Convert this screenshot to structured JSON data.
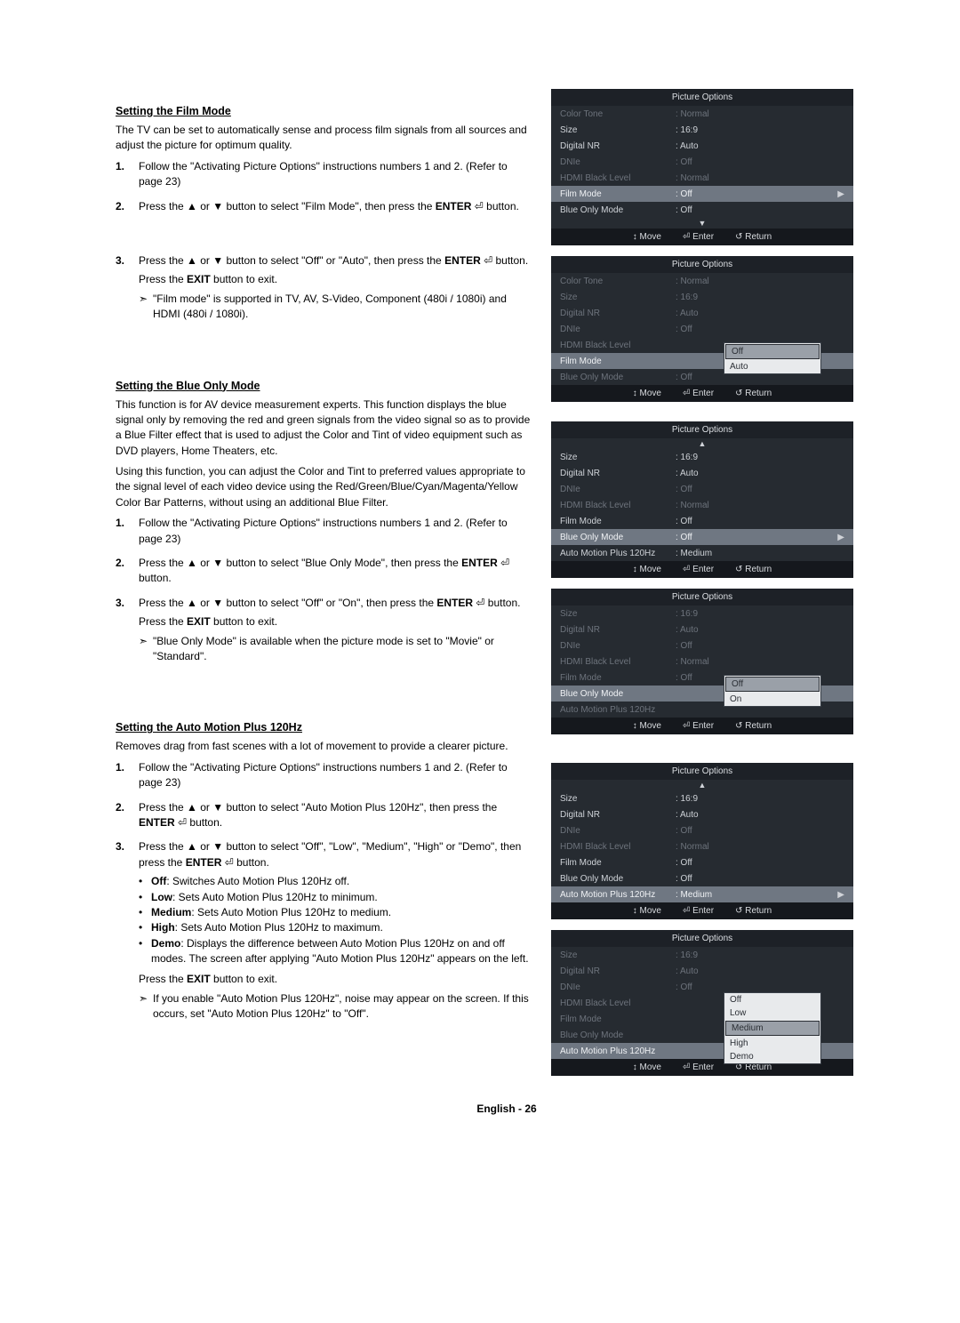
{
  "footer": "English - 26",
  "icons": {
    "enter": "⏎",
    "up": "▲",
    "down": "▼",
    "tri": "▶",
    "note": "➣",
    "move": "↕",
    "return": "↺"
  },
  "bar": {
    "move": "Move",
    "enter": "Enter",
    "return": "Return"
  },
  "menu_header": "Picture Options",
  "sectionA": {
    "title": "Setting the Film Mode",
    "intro": "The TV can be set to automatically sense and process film signals from all sources and adjust the picture for optimum quality.",
    "steps": [
      {
        "n": "1.",
        "text": "Follow the \"Activating Picture Options\" instructions numbers 1 and 2. (Refer to page 23)"
      },
      {
        "n": "2.",
        "text_parts": [
          "Press the ▲ or ▼ button to select \"Film Mode\", then press the ",
          "ENTER",
          " ⏎ button."
        ]
      },
      {
        "n": "3.",
        "text_parts": [
          "Press the ▲ or ▼ button to select \"Off\" or \"Auto\", then press the ",
          "ENTER",
          " ⏎ button."
        ],
        "exit_parts": [
          "Press the ",
          "EXIT",
          " button to exit."
        ],
        "note": "\"Film mode\" is supported in TV, AV, S-Video, Component (480i / 1080i) and HDMI (480i / 1080i)."
      }
    ]
  },
  "sectionB": {
    "title": "Setting the Blue Only Mode",
    "intro1": "This function is for AV device measurement experts. This function displays the blue signal only by removing the red and green signals from the video signal so as to provide a Blue Filter effect that is used to adjust the Color and Tint of video equipment such as DVD players, Home Theaters, etc.",
    "intro2": "Using this function, you can adjust the Color and Tint to preferred values appropriate to the signal level of each video device using the Red/Green/Blue/Cyan/Magenta/Yellow Color Bar Patterns, without using an additional Blue Filter.",
    "steps": [
      {
        "n": "1.",
        "text": "Follow the \"Activating Picture Options\" instructions numbers 1 and 2. (Refer to page 23)"
      },
      {
        "n": "2.",
        "text_parts": [
          "Press the ▲ or ▼ button to select \"Blue Only Mode\", then press the ",
          "ENTER",
          " ⏎ button."
        ]
      },
      {
        "n": "3.",
        "text_parts": [
          "Press the ▲ or ▼ button to select \"Off\" or \"On\", then press the ",
          "ENTER",
          " ⏎ button."
        ],
        "exit_parts": [
          "Press the ",
          "EXIT",
          " button to exit."
        ],
        "note": "\"Blue Only Mode\" is available when the picture mode is set to \"Movie\" or \"Standard\"."
      }
    ]
  },
  "sectionC": {
    "title": "Setting the Auto Motion Plus 120Hz",
    "intro": "Removes drag from fast scenes with a lot of movement to provide a clearer picture.",
    "steps": [
      {
        "n": "1.",
        "text": "Follow the \"Activating Picture Options\" instructions numbers 1 and 2. (Refer to page 23)"
      },
      {
        "n": "2.",
        "text_parts": [
          "Press the ▲ or ▼ button to select \"Auto Motion Plus 120Hz\", then press the ",
          "ENTER",
          " ⏎ button."
        ]
      },
      {
        "n": "3.",
        "text_parts": [
          "Press the ▲ or ▼ button to select \"Off\", \"Low\", \"Medium\", \"High\" or \"Demo\", then press the ",
          "ENTER",
          " ⏎ button."
        ]
      }
    ],
    "bullets": [
      {
        "b": "Off",
        "rest": ": Switches Auto Motion Plus 120Hz off."
      },
      {
        "b": "Low",
        "rest": ": Sets Auto Motion Plus 120Hz to minimum."
      },
      {
        "b": "Medium",
        "rest": ": Sets Auto Motion Plus 120Hz to medium."
      },
      {
        "b": "High",
        "rest": ": Sets Auto Motion Plus 120Hz to maximum."
      },
      {
        "b": "Demo",
        "rest": ": Displays the difference between Auto Motion Plus 120Hz on and off modes. The screen after applying \"Auto Motion Plus 120Hz\" appears on the left."
      }
    ],
    "exit_parts": [
      "Press the ",
      "EXIT",
      " button to exit."
    ],
    "note": "If you enable \"Auto Motion Plus 120Hz\", noise may appear on the screen. If this occurs, set \"Auto Motion Plus 120Hz\" to \"Off\"."
  },
  "menus": {
    "m1": {
      "rows": [
        {
          "label": "Color Tone",
          "val": ": Normal",
          "dim": true
        },
        {
          "label": "Size",
          "val": ": 16:9"
        },
        {
          "label": "Digital NR",
          "val": ": Auto"
        },
        {
          "label": "DNIe",
          "val": ": Off",
          "dim": true
        },
        {
          "label": "HDMI Black Level",
          "val": ": Normal",
          "dim": true
        },
        {
          "label": "Film Mode",
          "val": ": Off",
          "sel": true,
          "tri": true
        },
        {
          "label": "Blue Only Mode",
          "val": ": Off"
        }
      ],
      "scroll_down": true
    },
    "m2": {
      "rows": [
        {
          "label": "Color Tone",
          "val": ": Normal",
          "dim": true
        },
        {
          "label": "Size",
          "val": ": 16:9",
          "dim": true
        },
        {
          "label": "Digital NR",
          "val": ": Auto",
          "dim": true
        },
        {
          "label": "DNIe",
          "val": ": Off",
          "dim": true
        },
        {
          "label": "HDMI Black Level",
          "val": "",
          "dim": true
        },
        {
          "label": "Film Mode",
          "val": "",
          "sel": true,
          "popup": [
            "Off",
            "Auto"
          ],
          "popup_hl": 0
        },
        {
          "label": "Blue Only Mode",
          "val": ": Off",
          "dim": true
        }
      ]
    },
    "m3": {
      "scroll_up": true,
      "rows": [
        {
          "label": "Size",
          "val": ": 16:9"
        },
        {
          "label": "Digital NR",
          "val": ": Auto"
        },
        {
          "label": "DNIe",
          "val": ": Off",
          "dim": true
        },
        {
          "label": "HDMI Black Level",
          "val": ": Normal",
          "dim": true
        },
        {
          "label": "Film Mode",
          "val": ": Off"
        },
        {
          "label": "Blue Only Mode",
          "val": ": Off",
          "sel": true,
          "tri": true
        },
        {
          "label": "Auto Motion Plus 120Hz",
          "val": ": Medium"
        }
      ]
    },
    "m4": {
      "rows": [
        {
          "label": "Size",
          "val": ": 16:9",
          "dim": true
        },
        {
          "label": "Digital NR",
          "val": ": Auto",
          "dim": true
        },
        {
          "label": "DNIe",
          "val": ": Off",
          "dim": true
        },
        {
          "label": "HDMI Black Level",
          "val": ": Normal",
          "dim": true
        },
        {
          "label": "Film Mode",
          "val": ": Off",
          "dim": true
        },
        {
          "label": "Blue Only Mode",
          "val": "",
          "sel": true,
          "popup": [
            "Off",
            "On"
          ],
          "popup_hl": 0
        },
        {
          "label": "Auto Motion Plus 120Hz",
          "val": "",
          "dim": true
        }
      ]
    },
    "m5": {
      "scroll_up": true,
      "rows": [
        {
          "label": "Size",
          "val": ": 16:9"
        },
        {
          "label": "Digital NR",
          "val": ": Auto"
        },
        {
          "label": "DNIe",
          "val": ": Off",
          "dim": true
        },
        {
          "label": "HDMI Black Level",
          "val": ": Normal",
          "dim": true
        },
        {
          "label": "Film Mode",
          "val": ": Off"
        },
        {
          "label": "Blue Only Mode",
          "val": ": Off"
        },
        {
          "label": "Auto Motion Plus 120Hz",
          "val": ": Medium",
          "sel": true,
          "tri": true
        }
      ]
    },
    "m6": {
      "rows": [
        {
          "label": "Size",
          "val": ": 16:9",
          "dim": true
        },
        {
          "label": "Digital NR",
          "val": ": Auto",
          "dim": true
        },
        {
          "label": "DNIe",
          "val": ": Off",
          "dim": true
        },
        {
          "label": "HDMI Black Level",
          "val": "",
          "dim": true
        },
        {
          "label": "Film Mode",
          "val": "",
          "dim": true
        },
        {
          "label": "Blue Only Mode",
          "val": "",
          "dim": true
        },
        {
          "label": "Auto Motion Plus 120Hz",
          "val": "",
          "sel": true,
          "popup": [
            "Off",
            "Low",
            "Medium",
            "High",
            "Demo"
          ],
          "popup_hl": 2
        }
      ]
    }
  }
}
